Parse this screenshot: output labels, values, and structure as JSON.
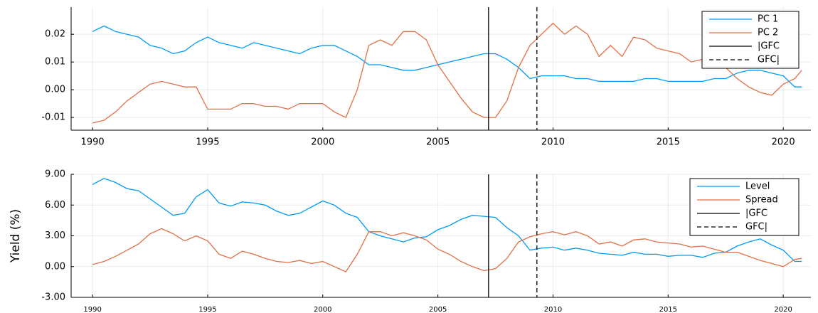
{
  "chart_data": [
    {
      "type": "line",
      "x": [
        1990,
        1990.5,
        1991,
        1991.5,
        1992,
        1992.5,
        1993,
        1993.5,
        1994,
        1994.5,
        1995,
        1995.5,
        1996,
        1996.5,
        1997,
        1997.5,
        1998,
        1998.5,
        1999,
        1999.5,
        2000,
        2000.5,
        2001,
        2001.5,
        2002,
        2002.5,
        2003,
        2003.5,
        2004,
        2004.5,
        2005,
        2005.5,
        2006,
        2006.5,
        2007,
        2007.5,
        2008,
        2008.5,
        2009,
        2009.5,
        2010,
        2010.5,
        2011,
        2011.5,
        2012,
        2012.5,
        2013,
        2013.5,
        2014,
        2014.5,
        2015,
        2015.5,
        2016,
        2016.5,
        2017,
        2017.5,
        2018,
        2018.5,
        2019,
        2019.5,
        2020,
        2020.5,
        2020.8
      ],
      "series": [
        {
          "name": "PC 1",
          "color": "#009AFA",
          "values": [
            0.021,
            0.023,
            0.021,
            0.02,
            0.019,
            0.016,
            0.015,
            0.013,
            0.014,
            0.017,
            0.019,
            0.017,
            0.016,
            0.015,
            0.017,
            0.016,
            0.015,
            0.014,
            0.013,
            0.015,
            0.016,
            0.016,
            0.014,
            0.012,
            0.009,
            0.009,
            0.008,
            0.007,
            0.007,
            0.008,
            0.009,
            0.01,
            0.011,
            0.012,
            0.013,
            0.013,
            0.011,
            0.008,
            0.004,
            0.005,
            0.005,
            0.005,
            0.004,
            0.004,
            0.003,
            0.003,
            0.003,
            0.003,
            0.004,
            0.004,
            0.003,
            0.003,
            0.003,
            0.003,
            0.004,
            0.004,
            0.006,
            0.007,
            0.007,
            0.006,
            0.005,
            0.001,
            0.001
          ]
        },
        {
          "name": "PC 2",
          "color": "#E26F46",
          "values": [
            -0.012,
            -0.011,
            -0.008,
            -0.004,
            -0.001,
            0.002,
            0.003,
            0.002,
            0.001,
            0.001,
            -0.007,
            -0.007,
            -0.007,
            -0.005,
            -0.005,
            -0.006,
            -0.006,
            -0.007,
            -0.005,
            -0.005,
            -0.005,
            -0.008,
            -0.01,
            0.0,
            0.016,
            0.018,
            0.016,
            0.021,
            0.021,
            0.018,
            0.009,
            0.003,
            -0.003,
            -0.008,
            -0.01,
            -0.01,
            -0.004,
            0.008,
            0.016,
            0.02,
            0.024,
            0.02,
            0.023,
            0.02,
            0.012,
            0.016,
            0.012,
            0.019,
            0.018,
            0.015,
            0.014,
            0.013,
            0.01,
            0.011,
            0.01,
            0.008,
            0.004,
            0.001,
            -0.001,
            -0.002,
            0.002,
            0.004,
            0.007
          ]
        }
      ],
      "vlines": [
        {
          "name": "|GFC",
          "color": "#000000",
          "x": 2007.2,
          "style": "solid"
        },
        {
          "name": "GFC|",
          "color": "#000000",
          "x": 2009.3,
          "style": "dashed"
        }
      ],
      "xlim": [
        1989.07,
        2021.2
      ],
      "xticks": [
        1990,
        1995,
        2000,
        2005,
        2010,
        2015,
        2020
      ],
      "ylim": [
        -0.0146,
        0.0298
      ],
      "yticks": [
        -0.01,
        {
          "value": 0,
          "label": "0.00"
        },
        0.01,
        0.02
      ],
      "grid": true,
      "legend": "top-right"
    },
    {
      "type": "line",
      "ylabel": "Yield (%)",
      "x": [
        1990,
        1990.5,
        1991,
        1991.5,
        1992,
        1992.5,
        1993,
        1993.5,
        1994,
        1994.5,
        1995,
        1995.5,
        1996,
        1996.5,
        1997,
        1997.5,
        1998,
        1998.5,
        1999,
        1999.5,
        2000,
        2000.5,
        2001,
        2001.5,
        2002,
        2002.5,
        2003,
        2003.5,
        2004,
        2004.5,
        2005,
        2005.5,
        2006,
        2006.5,
        2007,
        2007.5,
        2008,
        2008.5,
        2009,
        2009.5,
        2010,
        2010.5,
        2011,
        2011.5,
        2012,
        2012.5,
        2013,
        2013.5,
        2014,
        2014.5,
        2015,
        2015.5,
        2016,
        2016.5,
        2017,
        2017.5,
        2018,
        2018.5,
        2019,
        2019.5,
        2020,
        2020.5,
        2020.8
      ],
      "series": [
        {
          "name": "Level",
          "color": "#009AFA",
          "values": [
            8.0,
            8.6,
            8.2,
            7.6,
            7.4,
            6.6,
            5.8,
            5.0,
            5.2,
            6.8,
            7.5,
            6.2,
            5.9,
            6.3,
            6.2,
            6.0,
            5.4,
            5.0,
            5.2,
            5.8,
            6.4,
            6.0,
            5.2,
            4.8,
            3.4,
            3.0,
            2.7,
            2.4,
            2.8,
            2.9,
            3.6,
            4.0,
            4.6,
            5.0,
            4.9,
            4.8,
            3.8,
            3.0,
            1.6,
            1.8,
            1.9,
            1.6,
            1.8,
            1.6,
            1.3,
            1.2,
            1.1,
            1.4,
            1.2,
            1.2,
            1.0,
            1.1,
            1.1,
            0.9,
            1.3,
            1.4,
            2.0,
            2.4,
            2.7,
            2.1,
            1.6,
            0.5,
            0.5
          ]
        },
        {
          "name": "Spread",
          "color": "#E26F46",
          "values": [
            0.2,
            0.5,
            1.0,
            1.6,
            2.2,
            3.2,
            3.7,
            3.2,
            2.5,
            3.0,
            2.5,
            1.2,
            0.8,
            1.5,
            1.2,
            0.8,
            0.5,
            0.4,
            0.6,
            0.3,
            0.5,
            0.0,
            -0.5,
            1.2,
            3.4,
            3.4,
            3.0,
            3.3,
            3.0,
            2.6,
            1.7,
            1.2,
            0.5,
            0.0,
            -0.4,
            -0.2,
            0.8,
            2.4,
            2.9,
            3.2,
            3.4,
            3.1,
            3.4,
            3.0,
            2.2,
            2.4,
            2.0,
            2.6,
            2.7,
            2.4,
            2.3,
            2.2,
            1.9,
            2.0,
            1.7,
            1.4,
            1.4,
            1.0,
            0.6,
            0.3,
            0.0,
            0.7,
            0.8
          ]
        }
      ],
      "vlines": [
        {
          "name": "|GFC",
          "color": "#000000",
          "x": 2007.2,
          "style": "solid"
        },
        {
          "name": "GFC|",
          "color": "#000000",
          "x": 2009.3,
          "style": "dashed"
        }
      ],
      "xlim": [
        1989.07,
        2021.2
      ],
      "xticks": [
        1990,
        1995,
        2000,
        2005,
        2010,
        2015,
        2020
      ],
      "ylim": [
        -3,
        9
      ],
      "yticks": [
        {
          "value": -3,
          "label": "-3.00"
        },
        {
          "value": 0,
          "label": "0.00"
        },
        {
          "value": 3,
          "label": "3.00"
        },
        {
          "value": 6,
          "label": "6.00"
        },
        {
          "value": 9,
          "label": "9.00"
        }
      ],
      "grid": true,
      "legend": "top-right"
    }
  ]
}
